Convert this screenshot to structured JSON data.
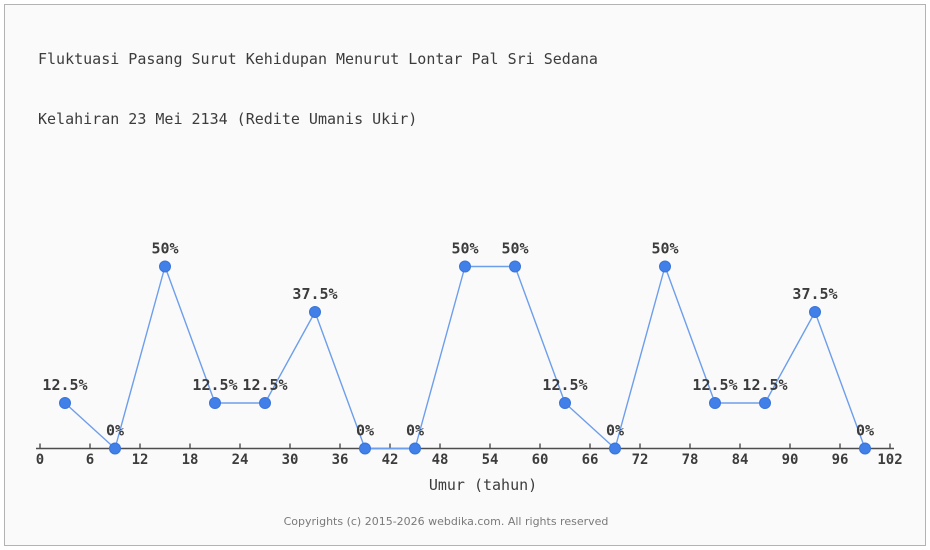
{
  "panel": {
    "background_color": "#fafafa",
    "border_color": "#b3b3b3"
  },
  "title": {
    "line1": "Fluktuasi Pasang Surut Kehidupan Menurut Lontar Pal Sri Sedana",
    "line2": "Kelahiran 23 Mei 2134 (Redite Umanis Ukir)"
  },
  "chart_data": {
    "type": "line",
    "x": [
      3,
      9,
      15,
      21,
      27,
      33,
      39,
      45,
      51,
      57,
      63,
      69,
      75,
      81,
      87,
      93,
      99
    ],
    "values": [
      12.5,
      0,
      50,
      12.5,
      12.5,
      37.5,
      0,
      0,
      50,
      50,
      12.5,
      0,
      50,
      12.5,
      12.5,
      37.5,
      0
    ],
    "point_labels": [
      "12.5%",
      "0%",
      "50%",
      "12.5%",
      "12.5%",
      "37.5%",
      "0%",
      "0%",
      "50%",
      "50%",
      "12.5%",
      "0%",
      "50%",
      "12.5%",
      "12.5%",
      "37.5%",
      "0%"
    ],
    "xlabel": "Umur (tahun)",
    "x_ticks": [
      0,
      6,
      12,
      18,
      24,
      30,
      36,
      42,
      48,
      54,
      60,
      66,
      72,
      78,
      84,
      90,
      96,
      102
    ],
    "xlim": [
      0,
      102
    ],
    "ylim": [
      0,
      100
    ],
    "grid": false,
    "y_axis_visible": false,
    "legend": "none",
    "line_color": "#6d9eeb",
    "marker_color": "#4080e8",
    "marker_edge_color": "#3a74d9",
    "axis_color": "#4d4d4d",
    "tick_label_color": "#3c3c3c",
    "point_label_color": "#3c3c3c"
  },
  "footer": {
    "copyright": "Copyrights (c) 2015-2026 webdika.com. All rights reserved"
  }
}
